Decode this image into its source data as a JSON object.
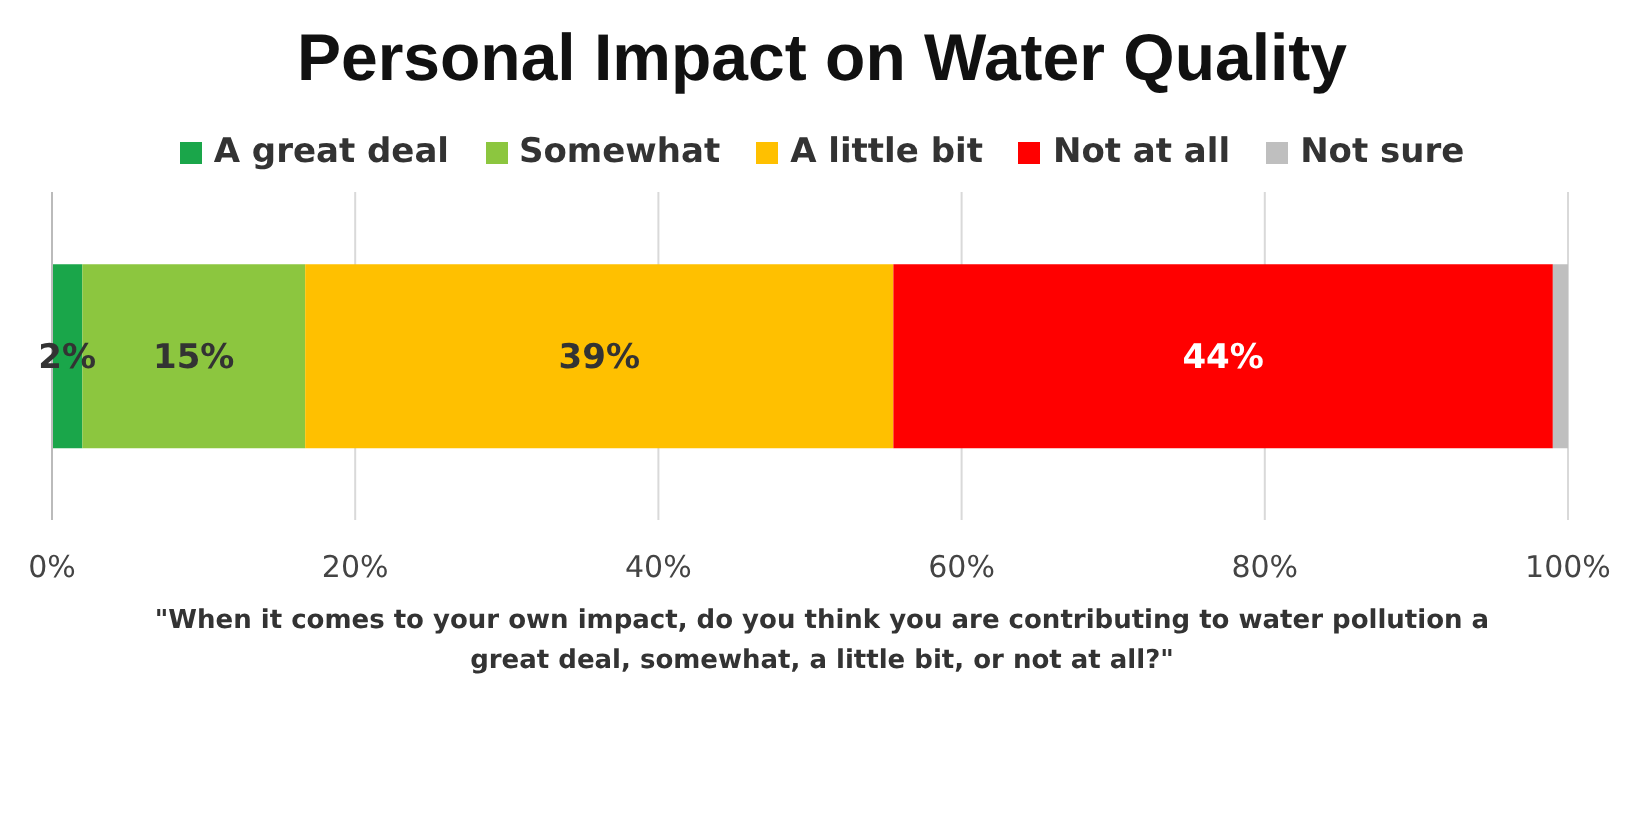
{
  "chart_data": {
    "type": "bar",
    "orientation": "horizontal",
    "stacked": true,
    "title": "Personal Impact on Water Quality",
    "categories": [
      null
    ],
    "series": [
      {
        "name": "A great deal",
        "color": "#1aa64a",
        "values": [
          2
        ],
        "value_labels": [
          "2%"
        ]
      },
      {
        "name": "Somewhat",
        "color": "#8cc63f",
        "values": [
          14.7
        ],
        "value_labels": [
          "15%"
        ]
      },
      {
        "name": "A little bit",
        "color": "#ffc000",
        "values": [
          38.8
        ],
        "value_labels": [
          "39%"
        ]
      },
      {
        "name": "Not at all",
        "color": "#ff0000",
        "values": [
          43.5
        ],
        "value_labels": [
          "44%"
        ]
      },
      {
        "name": "Not sure",
        "color": "#bfbfbf",
        "values": [
          1
        ],
        "value_labels": [
          null
        ]
      }
    ],
    "xlim": [
      0,
      100
    ],
    "xticks": [
      {
        "value": 0,
        "label": "0%"
      },
      {
        "value": 20,
        "label": "20%"
      },
      {
        "value": 40,
        "label": "40%"
      },
      {
        "value": 60,
        "label": "60%"
      },
      {
        "value": 80,
        "label": "80%"
      },
      {
        "value": 100,
        "label": "100%"
      }
    ],
    "grid": "x",
    "legend": "top",
    "annotations": [
      "\"When it comes to your own impact, do you think you are contributing  to water pollution a great deal, somewhat, a little bit, or not at all?\""
    ]
  }
}
